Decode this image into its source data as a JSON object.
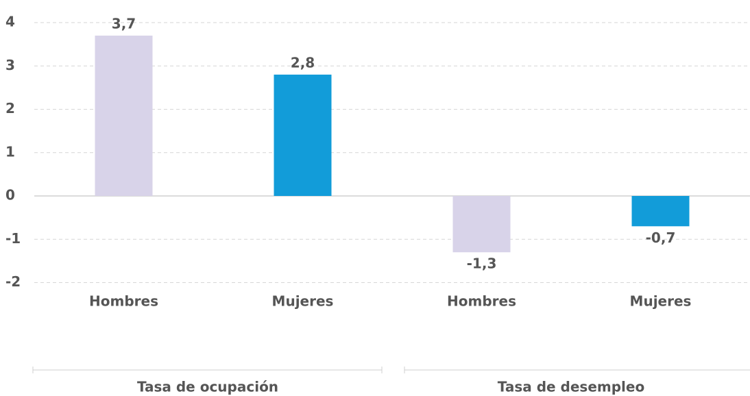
{
  "chart_data": {
    "type": "bar",
    "categories": [
      "Hombres",
      "Mujeres",
      "Hombres",
      "Mujeres"
    ],
    "values": [
      3.7,
      2.8,
      -1.3,
      -0.7
    ],
    "value_labels": [
      "3,7",
      "2,8",
      "-1,3",
      "-0,7"
    ],
    "colors": [
      "#d8d3e9",
      "#129cd9",
      "#d8d3e9",
      "#129cd9"
    ],
    "groups": [
      "Tasa de ocupación",
      "Tasa de desempleo"
    ],
    "ylim": [
      -2,
      4
    ],
    "yticks": [
      -2,
      -1,
      0,
      1,
      2,
      3,
      4
    ],
    "grid": true
  }
}
